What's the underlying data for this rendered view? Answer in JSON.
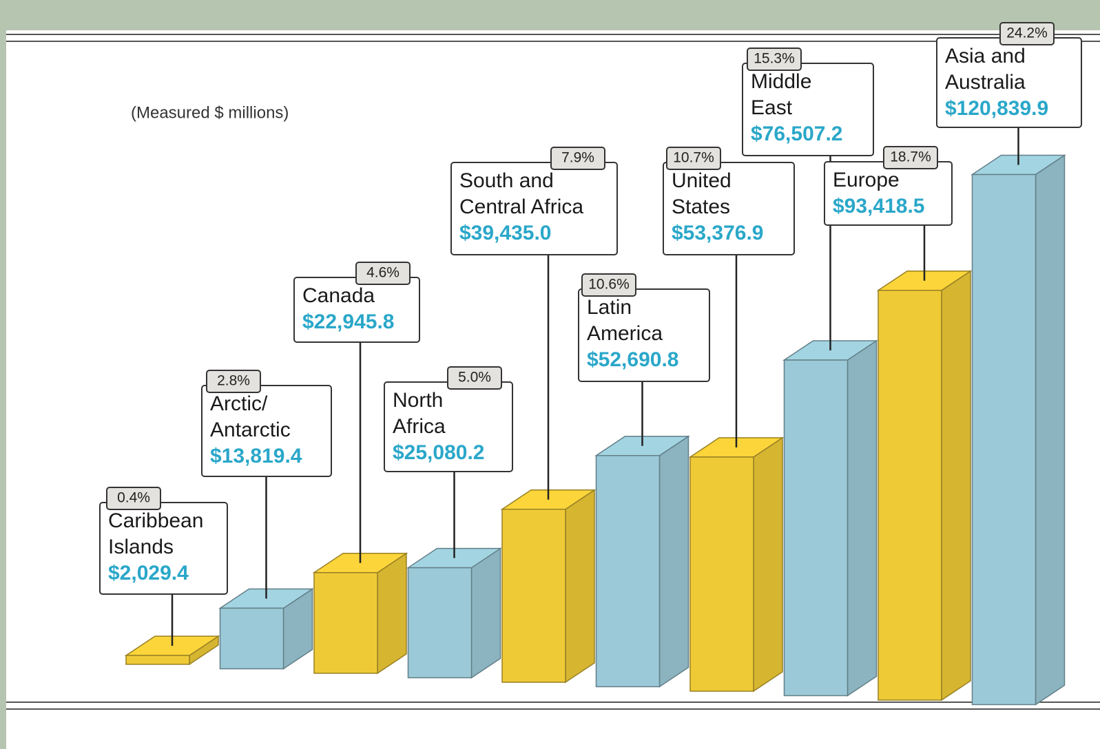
{
  "chart_data": {
    "type": "bar3d",
    "subtitle": "(Measured $ millions)",
    "categories": [
      [
        "Caribbean",
        "Islands"
      ],
      [
        "Arctic/",
        "Antarctic"
      ],
      [
        "Canada"
      ],
      [
        "North",
        "Africa"
      ],
      [
        "South and",
        "Central Africa"
      ],
      [
        "Latin",
        "America"
      ],
      [
        "United",
        "States"
      ],
      [
        "Middle",
        "East"
      ],
      [
        "Europe"
      ],
      [
        "Asia and",
        "Australia"
      ]
    ],
    "values": [
      2029.4,
      13819.4,
      22945.8,
      25080.2,
      39435.0,
      52690.8,
      53376.9,
      76507.2,
      93418.5,
      120839.9
    ],
    "value_labels": [
      "$2,029.4",
      "$13,819.4",
      "$22,945.8",
      "$25,080.2",
      "$39,435.0",
      "$52,690.8",
      "$53,376.9",
      "$76,507.2",
      "$93,418.5",
      "$120,839.9"
    ],
    "percentages": [
      0.4,
      2.8,
      4.6,
      5.0,
      7.9,
      10.6,
      10.7,
      15.3,
      18.7,
      24.2
    ],
    "percentage_labels": [
      "0.4%",
      "2.8%",
      "4.6%",
      "5.0%",
      "7.9%",
      "10.6%",
      "10.7%",
      "15.3%",
      "18.7%",
      "24.2%"
    ],
    "colors": [
      "#fcd53a",
      "#a3d4e2",
      "#fcd53a",
      "#a3d4e2",
      "#fcd53a",
      "#a3d4e2",
      "#fcd53a",
      "#a3d4e2",
      "#fcd53a",
      "#a3d4e2"
    ]
  }
}
